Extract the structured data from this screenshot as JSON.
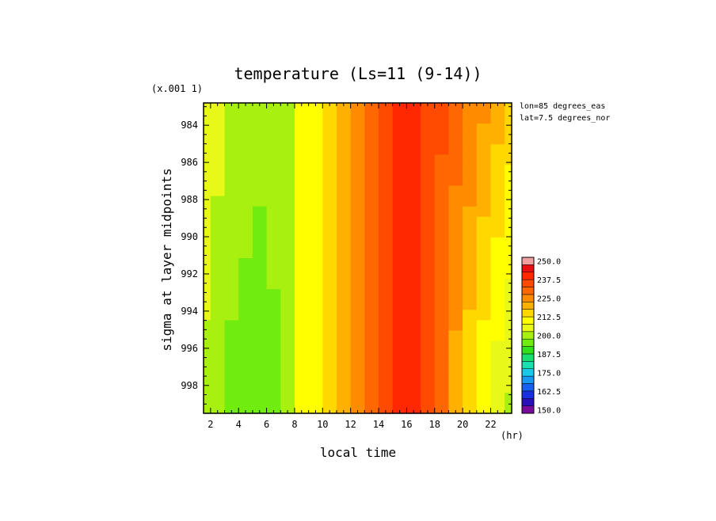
{
  "chart_data": {
    "type": "heatmap",
    "title": "temperature (Ls=11 (9-14))",
    "xlabel": "local time",
    "x_unit": "(hr)",
    "ylabel": "sigma at layer midpoints",
    "y_scale_note": "(x.001 1)",
    "xlim": [
      1.5,
      23.5
    ],
    "ylim": [
      999.5,
      982.8
    ],
    "x_ticks": [
      2,
      4,
      6,
      8,
      10,
      12,
      14,
      16,
      18,
      20,
      22
    ],
    "y_ticks": [
      984,
      986,
      988,
      990,
      992,
      994,
      996,
      998
    ],
    "annotations": [
      "lon=85 degrees_eas",
      "lat=7.5 degrees_nor"
    ],
    "colorbar": {
      "levels": [
        150,
        155,
        160,
        165,
        170,
        175,
        180,
        185,
        190,
        195,
        200,
        205,
        210,
        215,
        220,
        225,
        230,
        235,
        240,
        245,
        250
      ],
      "labels": [
        "250.0",
        "237.5",
        "225.0",
        "212.5",
        "200.0",
        "187.5",
        "175.0",
        "162.5",
        "150.0"
      ],
      "colors": [
        "#7a0b9a",
        "#2a10b8",
        "#1830e0",
        "#1860f0",
        "#1898f0",
        "#18c8e8",
        "#18e0b0",
        "#18e070",
        "#30e018",
        "#70ec10",
        "#a8f010",
        "#e8f818",
        "#ffff00",
        "#ffd800",
        "#ffb000",
        "#ff8c00",
        "#ff6800",
        "#ff4a00",
        "#ff2800",
        "#e81010",
        "#f0a0a0"
      ]
    },
    "x": [
      1.5,
      2,
      3,
      4,
      5,
      6,
      7,
      8,
      9,
      10,
      11,
      12,
      13,
      14,
      15,
      16,
      17,
      18,
      19,
      20,
      21,
      22,
      23,
      23.5
    ],
    "y": [
      982.8,
      984,
      986,
      988,
      990,
      992,
      994,
      996,
      998,
      999.5
    ],
    "grid_bands": [
      {
        "x_start": 1.5,
        "x_end": 2,
        "value_top": 210,
        "value_bottom": 203
      },
      {
        "x_start": 2,
        "x_end": 3,
        "value_top": 207,
        "value_bottom": 200
      },
      {
        "x_start": 3,
        "x_end": 4,
        "value_top": 205,
        "value_bottom": 198
      },
      {
        "x_start": 4,
        "x_end": 5,
        "value_top": 203,
        "value_bottom": 197
      },
      {
        "x_start": 5,
        "x_end": 6,
        "value_top": 202,
        "value_bottom": 196
      },
      {
        "x_start": 6,
        "x_end": 7,
        "value_top": 203,
        "value_bottom": 198
      },
      {
        "x_start": 7,
        "x_end": 8,
        "value_top": 205,
        "value_bottom": 203
      },
      {
        "x_start": 8,
        "x_end": 9,
        "value_top": 210,
        "value_bottom": 210
      },
      {
        "x_start": 9,
        "x_end": 10,
        "value_top": 214,
        "value_bottom": 214
      },
      {
        "x_start": 10,
        "x_end": 11,
        "value_top": 218,
        "value_bottom": 218
      },
      {
        "x_start": 11,
        "x_end": 12,
        "value_top": 222,
        "value_bottom": 222
      },
      {
        "x_start": 12,
        "x_end": 13,
        "value_top": 227,
        "value_bottom": 227
      },
      {
        "x_start": 13,
        "x_end": 14,
        "value_top": 232,
        "value_bottom": 232
      },
      {
        "x_start": 14,
        "x_end": 15,
        "value_top": 238,
        "value_bottom": 238
      },
      {
        "x_start": 15,
        "x_end": 16,
        "value_top": 240,
        "value_bottom": 241
      },
      {
        "x_start": 16,
        "x_end": 17,
        "value_top": 240,
        "value_bottom": 240
      },
      {
        "x_start": 17,
        "x_end": 18,
        "value_top": 238,
        "value_bottom": 237
      },
      {
        "x_start": 18,
        "x_end": 19,
        "value_top": 236,
        "value_bottom": 230
      },
      {
        "x_start": 19,
        "x_end": 20,
        "value_top": 233,
        "value_bottom": 222
      },
      {
        "x_start": 20,
        "x_end": 21,
        "value_top": 230,
        "value_bottom": 215
      },
      {
        "x_start": 21,
        "x_end": 22,
        "value_top": 226,
        "value_bottom": 210
      },
      {
        "x_start": 22,
        "x_end": 23,
        "value_top": 222,
        "value_bottom": 206
      },
      {
        "x_start": 23,
        "x_end": 23.5,
        "value_top": 218,
        "value_bottom": 204
      }
    ]
  }
}
